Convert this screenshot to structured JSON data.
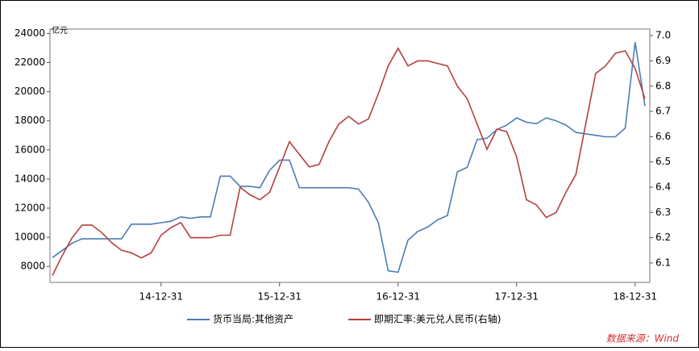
{
  "chart_data": {
    "type": "line",
    "y_unit": "亿元",
    "source": "数据来源：Wind",
    "x": [
      "14-01-31",
      "14-02-28",
      "14-03-31",
      "14-04-30",
      "14-05-31",
      "14-06-30",
      "14-07-31",
      "14-08-31",
      "14-09-30",
      "14-10-31",
      "14-11-30",
      "14-12-31",
      "15-01-31",
      "15-02-28",
      "15-03-31",
      "15-04-30",
      "15-05-31",
      "15-06-30",
      "15-07-31",
      "15-08-31",
      "15-09-30",
      "15-10-31",
      "15-11-30",
      "15-12-31",
      "16-01-31",
      "16-02-29",
      "16-03-31",
      "16-04-30",
      "16-05-31",
      "16-06-30",
      "16-07-31",
      "16-08-31",
      "16-09-30",
      "16-10-31",
      "16-11-30",
      "16-12-31",
      "17-01-31",
      "17-02-28",
      "17-03-31",
      "17-04-30",
      "17-05-31",
      "17-06-30",
      "17-07-31",
      "17-08-31",
      "17-09-30",
      "17-10-31",
      "17-11-30",
      "17-12-31",
      "18-01-31",
      "18-02-28",
      "18-03-31",
      "18-04-30",
      "18-05-31",
      "18-06-30",
      "18-07-31",
      "18-08-31",
      "18-09-30",
      "18-10-31",
      "18-11-30",
      "18-12-31",
      "19-01-31"
    ],
    "xticks": [
      "14-12-31",
      "15-12-31",
      "16-12-31",
      "17-12-31",
      "18-12-31"
    ],
    "ylim": [
      6900,
      24300
    ],
    "yticks": [
      8000,
      10000,
      12000,
      14000,
      16000,
      18000,
      20000,
      22000,
      24000
    ],
    "y2lim": [
      6.023,
      7.026
    ],
    "y2ticks": [
      6.1,
      6.2,
      6.3,
      6.4,
      6.5,
      6.6,
      6.7,
      6.8,
      6.9,
      {
        "value": 7,
        "label": "7.0"
      }
    ],
    "series": [
      {
        "name": "货币当局:其他资产",
        "color": "#4a7db5",
        "values": [
          8600,
          9100,
          9600,
          9900,
          9900,
          9900,
          9900,
          9900,
          10900,
          10900,
          10900,
          11000,
          11100,
          11400,
          11300,
          11400,
          11400,
          14200,
          14200,
          13500,
          13500,
          13400,
          14600,
          15300,
          15300,
          13400,
          13400,
          13400,
          13400,
          13400,
          13400,
          13300,
          12400,
          11000,
          7700,
          7600,
          9800,
          10400,
          10700,
          11200,
          11500,
          14500,
          14800,
          16700,
          16800,
          17400,
          17700,
          18200,
          17900,
          17800,
          18200,
          18000,
          17700,
          17200,
          17100,
          17000,
          16900,
          16900,
          17500,
          23400,
          19000
        ]
      },
      {
        "name": "即期汇率:美元兑人民币(右轴)",
        "color": "#b5403f",
        "axis": "y2",
        "values": [
          6.05,
          6.13,
          6.2,
          6.25,
          6.25,
          6.22,
          6.18,
          6.15,
          6.14,
          6.12,
          6.14,
          6.21,
          6.24,
          6.26,
          6.2,
          6.2,
          6.2,
          6.21,
          6.21,
          6.4,
          6.37,
          6.35,
          6.38,
          6.48,
          6.58,
          6.53,
          6.48,
          6.49,
          6.58,
          6.65,
          6.68,
          6.65,
          6.67,
          6.77,
          6.88,
          6.95,
          6.88,
          6.9,
          6.9,
          6.89,
          6.88,
          6.8,
          6.75,
          6.65,
          6.55,
          6.63,
          6.62,
          6.52,
          6.35,
          6.33,
          6.28,
          6.3,
          6.38,
          6.45,
          6.65,
          6.85,
          6.88,
          6.93,
          6.94,
          6.87,
          6.75
        ]
      }
    ]
  }
}
